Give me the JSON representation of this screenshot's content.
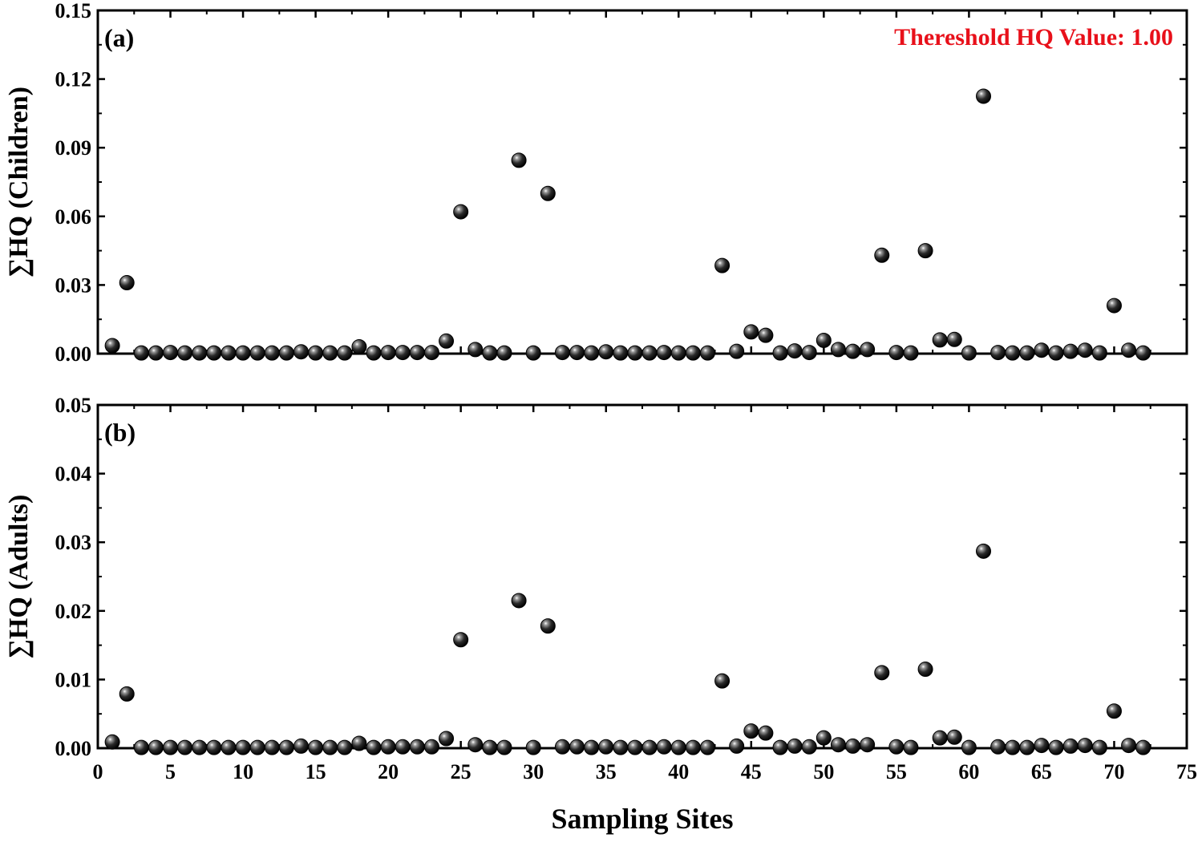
{
  "chart_data": [
    {
      "type": "scatter",
      "panel_label": "(a)",
      "ylabel": "∑HQ (Children)",
      "xlabel": "",
      "annotation": "Thereshold HQ Value: 1.00",
      "xlim": [
        0,
        75
      ],
      "ylim": [
        0,
        0.15
      ],
      "xticks": [
        "0",
        "5",
        "10",
        "15",
        "20",
        "25",
        "30",
        "35",
        "40",
        "45",
        "50",
        "55",
        "60",
        "65",
        "70",
        "75"
      ],
      "yticks": [
        "0.00",
        "0.03",
        "0.06",
        "0.09",
        "0.12",
        "0.15"
      ],
      "x": [
        1,
        2,
        3,
        4,
        5,
        6,
        7,
        8,
        9,
        10,
        11,
        12,
        13,
        14,
        15,
        16,
        17,
        18,
        19,
        20,
        21,
        22,
        23,
        24,
        25,
        26,
        27,
        28,
        29,
        30,
        31,
        32,
        33,
        34,
        35,
        36,
        37,
        38,
        39,
        40,
        41,
        42,
        43,
        44,
        45,
        46,
        47,
        48,
        49,
        50,
        51,
        52,
        53,
        54,
        55,
        56,
        57,
        58,
        59,
        60,
        61,
        62,
        63,
        64,
        65,
        66,
        67,
        68,
        69,
        70,
        71,
        72
      ],
      "y": [
        0.0035,
        0.031,
        0.0003,
        0.0003,
        0.0005,
        0.0003,
        0.0003,
        0.0003,
        0.0003,
        0.0003,
        0.0003,
        0.0003,
        0.0003,
        0.0008,
        0.0003,
        0.0003,
        0.0003,
        0.003,
        0.0003,
        0.0005,
        0.0005,
        0.0005,
        0.0005,
        0.0055,
        0.062,
        0.0018,
        0.0003,
        0.0003,
        0.0845,
        0.0003,
        0.07,
        0.0005,
        0.0005,
        0.0003,
        0.0008,
        0.0003,
        0.0003,
        0.0003,
        0.0005,
        0.0003,
        0.0003,
        0.0003,
        0.0385,
        0.001,
        0.0095,
        0.008,
        0.0003,
        0.0012,
        0.0005,
        0.0058,
        0.0018,
        0.001,
        0.0018,
        0.043,
        0.0005,
        0.0003,
        0.045,
        0.006,
        0.0062,
        0.0003,
        0.1125,
        0.0005,
        0.0003,
        0.0003,
        0.0015,
        0.0003,
        0.001,
        0.0015,
        0.0003,
        0.021,
        0.0015,
        0.0003
      ]
    },
    {
      "type": "scatter",
      "panel_label": "(b)",
      "ylabel": "∑HQ (Adults)",
      "xlabel": "Sampling Sites",
      "xlim": [
        0,
        75
      ],
      "ylim": [
        0,
        0.05
      ],
      "xticks": [
        "0",
        "5",
        "10",
        "15",
        "20",
        "25",
        "30",
        "35",
        "40",
        "45",
        "50",
        "55",
        "60",
        "65",
        "70",
        "75"
      ],
      "yticks": [
        "0.00",
        "0.01",
        "0.02",
        "0.03",
        "0.04",
        "0.05"
      ],
      "x": [
        1,
        2,
        3,
        4,
        5,
        6,
        7,
        8,
        9,
        10,
        11,
        12,
        13,
        14,
        15,
        16,
        17,
        18,
        19,
        20,
        21,
        22,
        23,
        24,
        25,
        26,
        27,
        28,
        29,
        30,
        31,
        32,
        33,
        34,
        35,
        36,
        37,
        38,
        39,
        40,
        41,
        42,
        43,
        44,
        45,
        46,
        47,
        48,
        49,
        50,
        51,
        52,
        53,
        54,
        55,
        56,
        57,
        58,
        59,
        60,
        61,
        62,
        63,
        64,
        65,
        66,
        67,
        68,
        69,
        70,
        71,
        72
      ],
      "y": [
        0.0009,
        0.0079,
        0.0001,
        0.0001,
        0.0001,
        0.0001,
        0.0001,
        0.0001,
        0.0001,
        0.0001,
        0.0001,
        0.0001,
        0.0001,
        0.0003,
        0.0001,
        0.0001,
        0.0001,
        0.0007,
        0.0001,
        0.0002,
        0.0002,
        0.0002,
        0.0002,
        0.0014,
        0.0158,
        0.0005,
        0.0001,
        0.0001,
        0.0215,
        0.0001,
        0.0178,
        0.0002,
        0.0002,
        0.0001,
        0.0002,
        0.0001,
        0.0001,
        0.0001,
        0.0002,
        0.0001,
        0.0001,
        0.0001,
        0.0098,
        0.0003,
        0.0025,
        0.0022,
        0.0001,
        0.0003,
        0.0002,
        0.0015,
        0.0005,
        0.0003,
        0.0005,
        0.011,
        0.0002,
        0.0001,
        0.0115,
        0.0015,
        0.0016,
        0.0001,
        0.0287,
        0.0002,
        0.0001,
        0.0001,
        0.0004,
        0.0001,
        0.0003,
        0.0004,
        0.0001,
        0.0054,
        0.0004,
        0.0001
      ]
    }
  ]
}
